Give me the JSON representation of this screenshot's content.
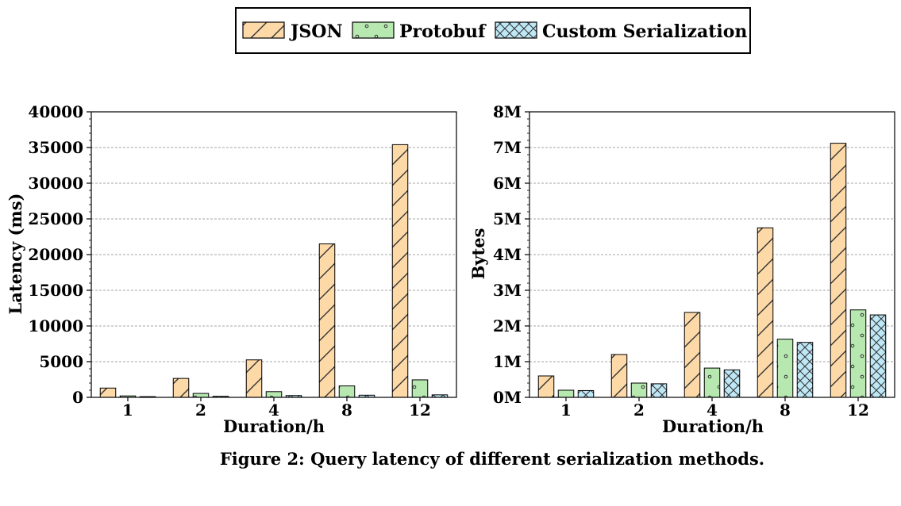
{
  "caption": "Figure 2: Query latency of different serialization methods.",
  "colors": {
    "json": "#fdd9a8",
    "protobuf": "#b6e8b0",
    "custom": "#bfe8f6"
  },
  "legend": [
    {
      "name": "JSON",
      "color": "#fdd9a8",
      "pattern": "hatch-diagonal"
    },
    {
      "name": "Protobuf",
      "color": "#b6e8b0",
      "pattern": "dots"
    },
    {
      "name": "Custom Serialization",
      "color": "#bfe8f6",
      "pattern": "crosshatch"
    }
  ],
  "chart_data": [
    {
      "type": "bar",
      "categories": [
        "1",
        "2",
        "4",
        "8",
        "12"
      ],
      "xlabel": "Duration/h",
      "ylabel": "Latency (ms)",
      "ylim": [
        0,
        40000
      ],
      "yticks": [
        "0",
        "5000",
        "10000",
        "15000",
        "20000",
        "25000",
        "30000",
        "35000",
        "40000"
      ],
      "grid": true,
      "series": [
        {
          "name": "JSON",
          "values": [
            1300,
            2650,
            5250,
            21500,
            35400
          ]
        },
        {
          "name": "Protobuf",
          "values": [
            200,
            550,
            800,
            1600,
            2450
          ]
        },
        {
          "name": "Custom Serialization",
          "values": [
            100,
            150,
            250,
            300,
            350
          ]
        }
      ]
    },
    {
      "type": "bar",
      "categories": [
        "1",
        "2",
        "4",
        "8",
        "12"
      ],
      "xlabel": "Duration/h",
      "ylabel": "Bytes",
      "ylim": [
        0,
        8
      ],
      "yticks": [
        "0M",
        "1M",
        "2M",
        "3M",
        "4M",
        "5M",
        "6M",
        "7M",
        "8M"
      ],
      "grid": true,
      "series": [
        {
          "name": "JSON",
          "values": [
            0.6,
            1.2,
            2.38,
            4.75,
            7.12
          ]
        },
        {
          "name": "Protobuf",
          "values": [
            0.2,
            0.4,
            0.82,
            1.63,
            2.45
          ]
        },
        {
          "name": "Custom Serialization",
          "values": [
            0.19,
            0.38,
            0.77,
            1.54,
            2.31
          ]
        }
      ]
    }
  ]
}
